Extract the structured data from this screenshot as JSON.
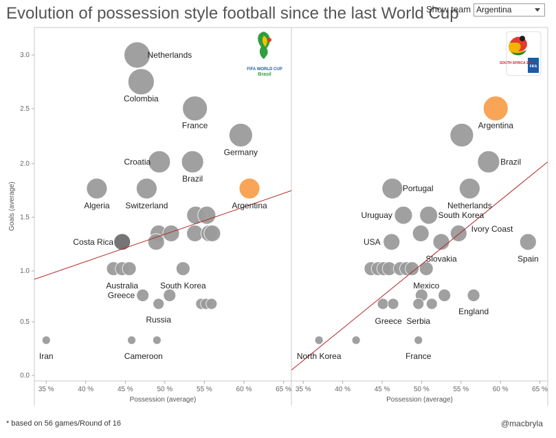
{
  "title": "Evolution of possession style football since the last World Cup",
  "filter": {
    "label": "Show team",
    "value": "Argentina"
  },
  "footnote": "* based on 56 games/Round of 16",
  "credit": "@macbryla",
  "colors": {
    "point": "#9b9b9b",
    "highlight": "#f9a04e",
    "dark_point": "#6e6e6e",
    "trend": "#b22222",
    "panel_border": "#c8c8c8"
  },
  "chart_data": [
    {
      "type": "scatter",
      "panel": "left",
      "logo_icon": "fifa-world-cup-2014-brasil-logo",
      "logo_lines": [
        "FIFA WORLD CUP",
        "Brasil"
      ],
      "ylabel": "Goals (average)",
      "xlabel": "Possession (average)",
      "xlim": [
        33.5,
        66
      ],
      "ylim": [
        -0.05,
        3.3
      ],
      "x_ticks": [
        "35 %",
        "40 %",
        "45 %",
        "50 %",
        "55 %",
        "60 %",
        "65 %"
      ],
      "y_ticks": [
        "0.0",
        "0.5",
        "1.0",
        "1.5",
        "2.0",
        "2.5",
        "3.0"
      ],
      "trendline": [
        [
          33.5,
          0.9
        ],
        [
          66,
          1.73
        ]
      ],
      "points": [
        {
          "x": 46.5,
          "y": 3.0,
          "r": 19
        },
        {
          "x": 47.0,
          "y": 2.75,
          "r": 19
        },
        {
          "x": 53.8,
          "y": 2.5,
          "r": 18
        },
        {
          "x": 59.6,
          "y": 2.25,
          "r": 17
        },
        {
          "x": 49.3,
          "y": 2.0,
          "r": 16
        },
        {
          "x": 53.5,
          "y": 2.0,
          "r": 16
        },
        {
          "x": 41.4,
          "y": 1.75,
          "r": 15
        },
        {
          "x": 47.7,
          "y": 1.75,
          "r": 15
        },
        {
          "x": 60.7,
          "y": 1.75,
          "r": 15,
          "highlight": true
        },
        {
          "x": 53.9,
          "y": 1.5,
          "r": 13
        },
        {
          "x": 55.3,
          "y": 1.5,
          "r": 13
        },
        {
          "x": 49.2,
          "y": 1.33,
          "r": 12
        },
        {
          "x": 50.8,
          "y": 1.33,
          "r": 12
        },
        {
          "x": 53.8,
          "y": 1.33,
          "r": 12
        },
        {
          "x": 55.6,
          "y": 1.33,
          "r": 12
        },
        {
          "x": 56.0,
          "y": 1.33,
          "r": 12
        },
        {
          "x": 48.9,
          "y": 1.25,
          "r": 12
        },
        {
          "x": 44.6,
          "y": 1.25,
          "r": 12,
          "dark": true
        },
        {
          "x": 43.5,
          "y": 1.0,
          "r": 10
        },
        {
          "x": 44.6,
          "y": 1.0,
          "r": 10
        },
        {
          "x": 45.5,
          "y": 1.0,
          "r": 10
        },
        {
          "x": 52.3,
          "y": 1.0,
          "r": 10
        },
        {
          "x": 47.2,
          "y": 0.75,
          "r": 9
        },
        {
          "x": 50.6,
          "y": 0.75,
          "r": 9
        },
        {
          "x": 49.2,
          "y": 0.67,
          "r": 8
        },
        {
          "x": 54.6,
          "y": 0.67,
          "r": 8
        },
        {
          "x": 55.2,
          "y": 0.67,
          "r": 8
        },
        {
          "x": 55.9,
          "y": 0.67,
          "r": 8
        },
        {
          "x": 35.0,
          "y": 0.33,
          "r": 6
        },
        {
          "x": 45.8,
          "y": 0.33,
          "r": 6
        },
        {
          "x": 49.0,
          "y": 0.33,
          "r": 6
        }
      ],
      "labels": [
        {
          "text": "Netherlands",
          "x": 47.8,
          "y": 3.0,
          "anchor": "start"
        },
        {
          "text": "Colombia",
          "x": 47.0,
          "y": 2.59,
          "anchor": "middle"
        },
        {
          "text": "France",
          "x": 53.8,
          "y": 2.34,
          "anchor": "middle"
        },
        {
          "text": "Germany",
          "x": 59.6,
          "y": 2.09,
          "anchor": "middle"
        },
        {
          "text": "Croatia",
          "x": 48.2,
          "y": 2.0,
          "anchor": "end"
        },
        {
          "text": "Brazil",
          "x": 53.5,
          "y": 1.84,
          "anchor": "middle"
        },
        {
          "text": "Algeria",
          "x": 41.4,
          "y": 1.59,
          "anchor": "middle"
        },
        {
          "text": "Switzerland",
          "x": 47.7,
          "y": 1.59,
          "anchor": "middle"
        },
        {
          "text": "Argentina",
          "x": 60.7,
          "y": 1.59,
          "anchor": "middle"
        },
        {
          "text": "Costa Rica",
          "x": 43.5,
          "y": 1.25,
          "anchor": "end"
        },
        {
          "text": "Australia",
          "x": 44.6,
          "y": 0.84,
          "anchor": "middle"
        },
        {
          "text": "South Korea",
          "x": 52.3,
          "y": 0.84,
          "anchor": "middle"
        },
        {
          "text": "Greece",
          "x": 46.2,
          "y": 0.75,
          "anchor": "end"
        },
        {
          "text": "Russia",
          "x": 49.2,
          "y": 0.52,
          "anchor": "middle"
        },
        {
          "text": "Iran",
          "x": 35.0,
          "y": 0.18,
          "anchor": "middle"
        },
        {
          "text": "Cameroon",
          "x": 47.3,
          "y": 0.18,
          "anchor": "middle"
        }
      ]
    },
    {
      "type": "scatter",
      "panel": "right",
      "logo_icon": "fifa-world-cup-2010-south-africa-logo",
      "logo_lines": [
        "SOUTH AFRICA 2010",
        "FIFA"
      ],
      "ylabel": "",
      "xlabel": "Possession (average)",
      "xlim": [
        33.5,
        66
      ],
      "ylim": [
        -0.05,
        3.3
      ],
      "x_ticks": [
        "35 %",
        "40 %",
        "45 %",
        "50 %",
        "55 %",
        "60 %",
        "65 %"
      ],
      "y_ticks": [],
      "trendline": [
        [
          33.5,
          0.05
        ],
        [
          66,
          2.0
        ]
      ],
      "points": [
        {
          "x": 59.4,
          "y": 2.5,
          "r": 18,
          "highlight": true
        },
        {
          "x": 55.1,
          "y": 2.25,
          "r": 17
        },
        {
          "x": 58.5,
          "y": 2.0,
          "r": 16
        },
        {
          "x": 46.3,
          "y": 1.75,
          "r": 15
        },
        {
          "x": 56.1,
          "y": 1.75,
          "r": 15
        },
        {
          "x": 47.7,
          "y": 1.5,
          "r": 13
        },
        {
          "x": 50.9,
          "y": 1.5,
          "r": 13
        },
        {
          "x": 49.9,
          "y": 1.33,
          "r": 12
        },
        {
          "x": 54.7,
          "y": 1.33,
          "r": 12
        },
        {
          "x": 46.2,
          "y": 1.25,
          "r": 12
        },
        {
          "x": 52.5,
          "y": 1.25,
          "r": 12
        },
        {
          "x": 63.5,
          "y": 1.25,
          "r": 12
        },
        {
          "x": 43.6,
          "y": 1.0,
          "r": 10
        },
        {
          "x": 44.5,
          "y": 1.0,
          "r": 10
        },
        {
          "x": 45.2,
          "y": 1.0,
          "r": 10
        },
        {
          "x": 45.9,
          "y": 1.0,
          "r": 10
        },
        {
          "x": 47.3,
          "y": 1.0,
          "r": 10
        },
        {
          "x": 48.1,
          "y": 1.0,
          "r": 10
        },
        {
          "x": 48.8,
          "y": 1.0,
          "r": 10
        },
        {
          "x": 50.6,
          "y": 1.0,
          "r": 10
        },
        {
          "x": 50.0,
          "y": 0.75,
          "r": 9
        },
        {
          "x": 52.9,
          "y": 0.75,
          "r": 9
        },
        {
          "x": 56.6,
          "y": 0.75,
          "r": 9
        },
        {
          "x": 45.1,
          "y": 0.67,
          "r": 8
        },
        {
          "x": 46.4,
          "y": 0.67,
          "r": 8
        },
        {
          "x": 49.6,
          "y": 0.67,
          "r": 8
        },
        {
          "x": 51.3,
          "y": 0.67,
          "r": 8
        },
        {
          "x": 37.0,
          "y": 0.33,
          "r": 6
        },
        {
          "x": 41.7,
          "y": 0.33,
          "r": 6
        },
        {
          "x": 49.6,
          "y": 0.33,
          "r": 6
        }
      ],
      "labels": [
        {
          "text": "Argentina",
          "x": 59.4,
          "y": 2.34,
          "anchor": "middle"
        },
        {
          "text": "Brazil",
          "x": 60.0,
          "y": 2.0,
          "anchor": "start"
        },
        {
          "text": "Portugal",
          "x": 47.6,
          "y": 1.75,
          "anchor": "start"
        },
        {
          "text": "Netherlands",
          "x": 56.1,
          "y": 1.59,
          "anchor": "middle"
        },
        {
          "text": "Uruguay",
          "x": 46.3,
          "y": 1.5,
          "anchor": "end"
        },
        {
          "text": "South Korea",
          "x": 52.1,
          "y": 1.5,
          "anchor": "start"
        },
        {
          "text": "Ivory Coast",
          "x": 56.3,
          "y": 1.37,
          "anchor": "start"
        },
        {
          "text": "USA",
          "x": 44.8,
          "y": 1.25,
          "anchor": "end"
        },
        {
          "text": "Slovakia",
          "x": 52.5,
          "y": 1.09,
          "anchor": "middle"
        },
        {
          "text": "Spain",
          "x": 63.5,
          "y": 1.09,
          "anchor": "middle"
        },
        {
          "text": "Mexico",
          "x": 50.6,
          "y": 0.84,
          "anchor": "middle"
        },
        {
          "text": "England",
          "x": 56.6,
          "y": 0.6,
          "anchor": "middle"
        },
        {
          "text": "Greece",
          "x": 45.8,
          "y": 0.51,
          "anchor": "middle"
        },
        {
          "text": "Serbia",
          "x": 49.6,
          "y": 0.51,
          "anchor": "middle"
        },
        {
          "text": "North Korea",
          "x": 37.0,
          "y": 0.18,
          "anchor": "middle"
        },
        {
          "text": "France",
          "x": 49.6,
          "y": 0.18,
          "anchor": "middle"
        }
      ]
    }
  ]
}
